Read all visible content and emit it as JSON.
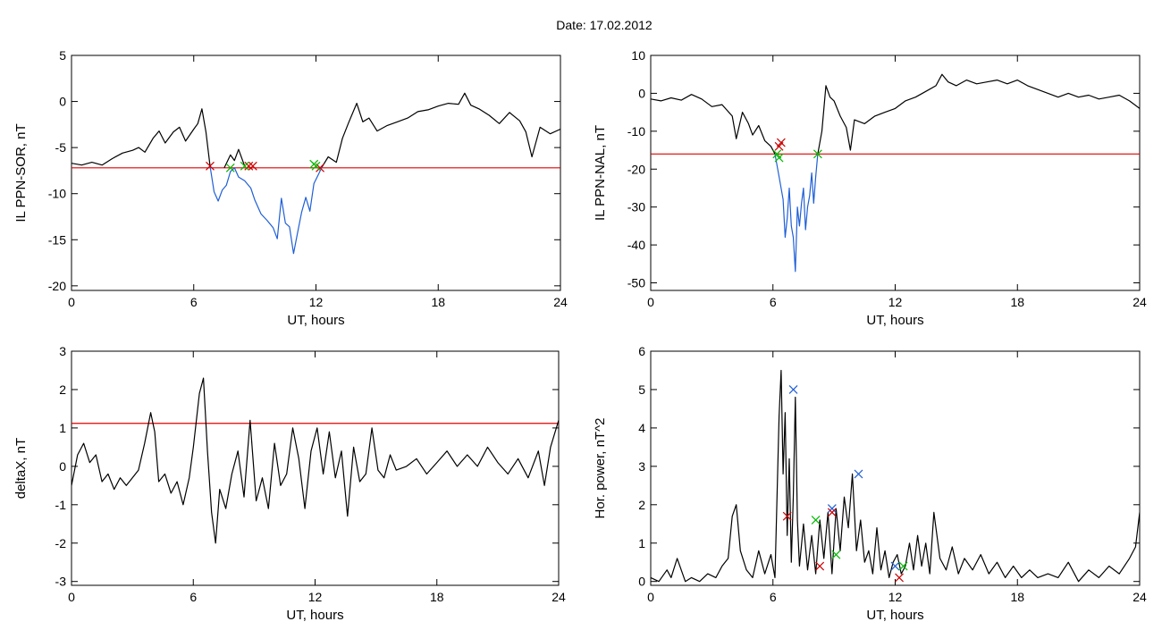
{
  "figure": {
    "title": "Date:  17.02.2012"
  },
  "chart_data": [
    {
      "id": "p1",
      "type": "line",
      "title": "",
      "xlabel": "UT, hours",
      "ylabel": "IL PPN-SOR, nT",
      "xlim": [
        0,
        24
      ],
      "ylim": [
        -20.5,
        5
      ],
      "xticks": [
        0,
        6,
        12,
        18,
        24
      ],
      "yticks": [
        5,
        0,
        -5,
        -10,
        -15,
        -20
      ],
      "grid": false,
      "threshold": -7.2,
      "series": [
        {
          "color": "#000000",
          "x": [
            0,
            0.5,
            1,
            1.5,
            2,
            2.5,
            3,
            3.3,
            3.6,
            4,
            4.3,
            4.6,
            5,
            5.3,
            5.6,
            6,
            6.2,
            6.4,
            6.6,
            6.8
          ],
          "y": [
            -6.7,
            -6.9,
            -6.6,
            -6.9,
            -6.2,
            -5.6,
            -5.3,
            -5.0,
            -5.5,
            -4.0,
            -3.2,
            -4.5,
            -3.3,
            -2.8,
            -4.3,
            -3.0,
            -2.4,
            -0.8,
            -3.3,
            -7.0
          ]
        },
        {
          "color": "#000000",
          "x": [
            7.5,
            7.8,
            8.0,
            8.2,
            8.5
          ],
          "y": [
            -7.2,
            -5.8,
            -6.4,
            -5.2,
            -7.0
          ]
        },
        {
          "color": "#000000",
          "x": [
            12.3,
            12.6,
            13,
            13.3,
            13.6,
            14,
            14.3,
            14.6,
            15,
            15.5,
            16,
            16.5,
            17,
            17.5,
            18,
            18.5,
            19,
            19.3,
            19.6,
            20,
            20.5,
            21,
            21.5,
            22,
            22.3,
            22.6,
            23,
            23.5,
            24
          ],
          "y": [
            -7.1,
            -6.0,
            -6.6,
            -4.0,
            -2.3,
            -0.2,
            -2.2,
            -1.8,
            -3.2,
            -2.6,
            -2.2,
            -1.8,
            -1.1,
            -0.9,
            -0.5,
            -0.2,
            -0.3,
            0.9,
            -0.4,
            -0.8,
            -1.5,
            -2.4,
            -1.2,
            -2.1,
            -3.3,
            -6.0,
            -2.8,
            -3.5,
            -3.0
          ]
        },
        {
          "color": "#1f5fd6",
          "x": [
            6.8,
            7.0,
            7.2,
            7.4,
            7.6,
            7.8,
            8.0,
            8.2,
            8.5,
            8.8,
            9.0,
            9.3,
            9.6,
            9.9,
            10.1,
            10.3,
            10.5,
            10.7,
            10.9,
            11.1,
            11.3,
            11.5,
            11.7,
            11.9,
            12.1,
            12.3
          ],
          "y": [
            -7.0,
            -9.8,
            -10.8,
            -9.6,
            -9.1,
            -7.6,
            -7.2,
            -8.2,
            -8.6,
            -9.4,
            -10.7,
            -12.2,
            -12.9,
            -13.7,
            -14.9,
            -10.5,
            -13.2,
            -13.6,
            -16.5,
            -14.2,
            -12.0,
            -10.4,
            -11.9,
            -8.9,
            -8.0,
            -7.1
          ]
        }
      ],
      "markers": [
        {
          "x": 6.8,
          "y": -7.0,
          "color": "#cc0000"
        },
        {
          "x": 8.7,
          "y": -7.0,
          "color": "#cc0000"
        },
        {
          "x": 8.9,
          "y": -7.0,
          "color": "#cc0000"
        },
        {
          "x": 12.2,
          "y": -7.2,
          "color": "#cc0000"
        },
        {
          "x": 7.8,
          "y": -7.2,
          "color": "#00bb00"
        },
        {
          "x": 8.5,
          "y": -7.0,
          "color": "#00bb00"
        },
        {
          "x": 11.9,
          "y": -6.8,
          "color": "#00bb00"
        },
        {
          "x": 12.0,
          "y": -7.0,
          "color": "#00bb00"
        }
      ]
    },
    {
      "id": "p2",
      "type": "line",
      "title": "",
      "xlabel": "UT, hours",
      "ylabel": "IL PPN-NAL, nT",
      "xlim": [
        0,
        24
      ],
      "ylim": [
        -52,
        10
      ],
      "xticks": [
        0,
        6,
        12,
        18,
        24
      ],
      "yticks": [
        10,
        0,
        -10,
        -20,
        -30,
        -40,
        -50
      ],
      "grid": false,
      "threshold": -16,
      "series": [
        {
          "color": "#000000",
          "x": [
            0,
            0.5,
            1,
            1.5,
            2,
            2.5,
            3,
            3.5,
            4,
            4.2,
            4.5,
            4.8,
            5,
            5.3,
            5.6,
            5.9,
            6.1
          ],
          "y": [
            -1.5,
            -2.0,
            -1.2,
            -1.8,
            -0.3,
            -1.5,
            -3.5,
            -3.0,
            -6.0,
            -12.0,
            -5.0,
            -8.0,
            -11.0,
            -8.5,
            -12.5,
            -14.0,
            -16.0
          ]
        },
        {
          "color": "#000000",
          "x": [
            8.2,
            8.4,
            8.6,
            8.8,
            9.0,
            9.3,
            9.6,
            9.8,
            10,
            10.5,
            11,
            11.5,
            12,
            12.5,
            13,
            13.5,
            14,
            14.3,
            14.6,
            15,
            15.5,
            16,
            16.5,
            17,
            17.5,
            18,
            18.5,
            19,
            19.5,
            20,
            20.5,
            21,
            21.5,
            22,
            22.5,
            23,
            23.5,
            24
          ],
          "y": [
            -16.0,
            -10.0,
            2.0,
            -1.0,
            -2.0,
            -6.0,
            -9.0,
            -15.0,
            -7.0,
            -8.0,
            -6.0,
            -5.0,
            -4.0,
            -2.0,
            -1.0,
            0.5,
            2.0,
            5.0,
            3.0,
            2.0,
            3.5,
            2.5,
            3.0,
            3.5,
            2.5,
            3.5,
            2.0,
            1.0,
            0.0,
            -1.0,
            0.0,
            -1.0,
            -0.5,
            -1.5,
            -1.0,
            -0.5,
            -2.0,
            -4.0
          ]
        },
        {
          "color": "#1f5fd6",
          "x": [
            6.1,
            6.3,
            6.5,
            6.6,
            6.7,
            6.8,
            6.9,
            7.0,
            7.1,
            7.2,
            7.3,
            7.4,
            7.5,
            7.6,
            7.7,
            7.8,
            7.9,
            8.0,
            8.1,
            8.2
          ],
          "y": [
            -16.0,
            -22.0,
            -28.0,
            -38.0,
            -33.0,
            -25.0,
            -35.0,
            -38.0,
            -47.0,
            -30.0,
            -35.0,
            -29.0,
            -25.0,
            -36.0,
            -30.0,
            -27.0,
            -21.0,
            -29.0,
            -22.0,
            -16.0
          ]
        }
      ],
      "markers": [
        {
          "x": 6.3,
          "y": -14.0,
          "color": "#cc0000"
        },
        {
          "x": 6.4,
          "y": -13.0,
          "color": "#cc0000"
        },
        {
          "x": 6.2,
          "y": -16.0,
          "color": "#00bb00"
        },
        {
          "x": 6.3,
          "y": -17.0,
          "color": "#00bb00"
        },
        {
          "x": 8.2,
          "y": -16.0,
          "color": "#00bb00"
        }
      ]
    },
    {
      "id": "p3",
      "type": "line",
      "title": "",
      "xlabel": "UT, hours",
      "ylabel": "deltaX, nT",
      "xlim": [
        0,
        24
      ],
      "ylim": [
        -3.1,
        3
      ],
      "xticks": [
        0,
        6,
        12,
        18,
        24
      ],
      "yticks": [
        3,
        2,
        1,
        0,
        -1,
        -2,
        -3
      ],
      "grid": false,
      "threshold": 1.12,
      "series": [
        {
          "color": "#000000",
          "x": [
            0,
            0.3,
            0.6,
            0.9,
            1.2,
            1.5,
            1.8,
            2.1,
            2.4,
            2.7,
            3.0,
            3.3,
            3.6,
            3.9,
            4.1,
            4.3,
            4.6,
            4.9,
            5.2,
            5.5,
            5.8,
            6.0,
            6.3,
            6.5,
            6.7,
            6.9,
            7.1,
            7.3,
            7.6,
            7.9,
            8.2,
            8.5,
            8.8,
            9.1,
            9.4,
            9.7,
            10.0,
            10.3,
            10.6,
            10.9,
            11.2,
            11.5,
            11.8,
            12.1,
            12.4,
            12.7,
            13.0,
            13.3,
            13.6,
            13.9,
            14.2,
            14.5,
            14.8,
            15.1,
            15.4,
            15.7,
            16.0,
            16.5,
            17,
            17.5,
            18,
            18.5,
            19,
            19.5,
            20,
            20.5,
            21,
            21.5,
            22,
            22.5,
            23,
            23.3,
            23.6,
            24
          ],
          "y": [
            -0.5,
            0.3,
            0.6,
            0.1,
            0.3,
            -0.4,
            -0.2,
            -0.6,
            -0.3,
            -0.5,
            -0.3,
            -0.1,
            0.6,
            1.4,
            0.9,
            -0.4,
            -0.2,
            -0.7,
            -0.4,
            -1.0,
            -0.3,
            0.5,
            1.9,
            2.3,
            0.4,
            -1.2,
            -2.0,
            -0.6,
            -1.1,
            -0.2,
            0.4,
            -0.8,
            1.2,
            -0.9,
            -0.3,
            -1.1,
            0.6,
            -0.5,
            -0.2,
            1.0,
            0.2,
            -1.1,
            0.4,
            1.0,
            -0.2,
            0.9,
            -0.3,
            0.4,
            -1.3,
            0.5,
            -0.4,
            -0.2,
            1.0,
            -0.1,
            -0.3,
            0.3,
            -0.1,
            0.0,
            0.2,
            -0.2,
            0.1,
            0.4,
            0.0,
            0.3,
            0.0,
            0.5,
            0.1,
            -0.2,
            0.2,
            -0.3,
            0.4,
            -0.5,
            0.5,
            1.2
          ]
        }
      ],
      "markers": []
    },
    {
      "id": "p4",
      "type": "line",
      "title": "",
      "xlabel": "UT, hours",
      "ylabel": "Hor. power, nT^2",
      "xlim": [
        0,
        24
      ],
      "ylim": [
        -0.1,
        6
      ],
      "xticks": [
        0,
        6,
        12,
        18,
        24
      ],
      "yticks": [
        6,
        5,
        4,
        3,
        2,
        1,
        0
      ],
      "grid": false,
      "series": [
        {
          "color": "#000000",
          "x": [
            0,
            0.4,
            0.8,
            1.0,
            1.3,
            1.7,
            2.0,
            2.4,
            2.8,
            3.2,
            3.5,
            3.8,
            4.0,
            4.2,
            4.4,
            4.7,
            5.0,
            5.3,
            5.6,
            5.9,
            6.1,
            6.3,
            6.4,
            6.5,
            6.6,
            6.7,
            6.8,
            6.9,
            7.0,
            7.1,
            7.2,
            7.3,
            7.5,
            7.7,
            7.9,
            8.1,
            8.3,
            8.5,
            8.7,
            8.9,
            9.1,
            9.3,
            9.5,
            9.7,
            9.9,
            10.1,
            10.3,
            10.5,
            10.7,
            10.9,
            11.1,
            11.3,
            11.5,
            11.7,
            11.9,
            12.1,
            12.3,
            12.5,
            12.7,
            12.9,
            13.1,
            13.3,
            13.5,
            13.7,
            13.9,
            14.2,
            14.5,
            14.8,
            15.1,
            15.4,
            15.8,
            16.2,
            16.6,
            17.0,
            17.4,
            17.8,
            18.2,
            18.6,
            19.0,
            19.5,
            20,
            20.5,
            21,
            21.5,
            22,
            22.5,
            23,
            23.5,
            23.8,
            24
          ],
          "y": [
            0.1,
            0.0,
            0.3,
            0.1,
            0.6,
            0.0,
            0.1,
            0.0,
            0.2,
            0.1,
            0.4,
            0.6,
            1.7,
            2.0,
            0.8,
            0.3,
            0.1,
            0.8,
            0.2,
            0.7,
            0.1,
            4.3,
            5.5,
            2.8,
            4.4,
            1.2,
            3.2,
            0.5,
            2.2,
            4.8,
            1.6,
            0.4,
            1.5,
            0.3,
            1.2,
            0.2,
            1.6,
            0.6,
            1.8,
            0.2,
            1.9,
            0.8,
            2.2,
            1.4,
            2.8,
            0.8,
            1.6,
            0.5,
            0.8,
            0.2,
            1.4,
            0.3,
            0.8,
            0.1,
            0.5,
            0.7,
            0.2,
            0.4,
            1.0,
            0.3,
            1.2,
            0.4,
            1.0,
            0.2,
            1.8,
            0.6,
            0.3,
            0.9,
            0.2,
            0.6,
            0.3,
            0.7,
            0.2,
            0.5,
            0.1,
            0.4,
            0.1,
            0.3,
            0.1,
            0.2,
            0.1,
            0.5,
            0.0,
            0.3,
            0.1,
            0.4,
            0.2,
            0.6,
            0.9,
            1.8
          ]
        }
      ],
      "markers": [
        {
          "x": 7.0,
          "y": 5.0,
          "color": "#1f5fd6"
        },
        {
          "x": 8.9,
          "y": 1.9,
          "color": "#1f5fd6"
        },
        {
          "x": 10.2,
          "y": 2.8,
          "color": "#1f5fd6"
        },
        {
          "x": 12.0,
          "y": 0.4,
          "color": "#1f5fd6"
        },
        {
          "x": 6.7,
          "y": 1.7,
          "color": "#cc0000"
        },
        {
          "x": 8.9,
          "y": 1.8,
          "color": "#cc0000"
        },
        {
          "x": 8.3,
          "y": 0.4,
          "color": "#cc0000"
        },
        {
          "x": 12.2,
          "y": 0.1,
          "color": "#cc0000"
        },
        {
          "x": 8.1,
          "y": 1.6,
          "color": "#00bb00"
        },
        {
          "x": 12.4,
          "y": 0.4,
          "color": "#00bb00"
        },
        {
          "x": 9.1,
          "y": 0.7,
          "color": "#00bb00"
        }
      ]
    }
  ]
}
